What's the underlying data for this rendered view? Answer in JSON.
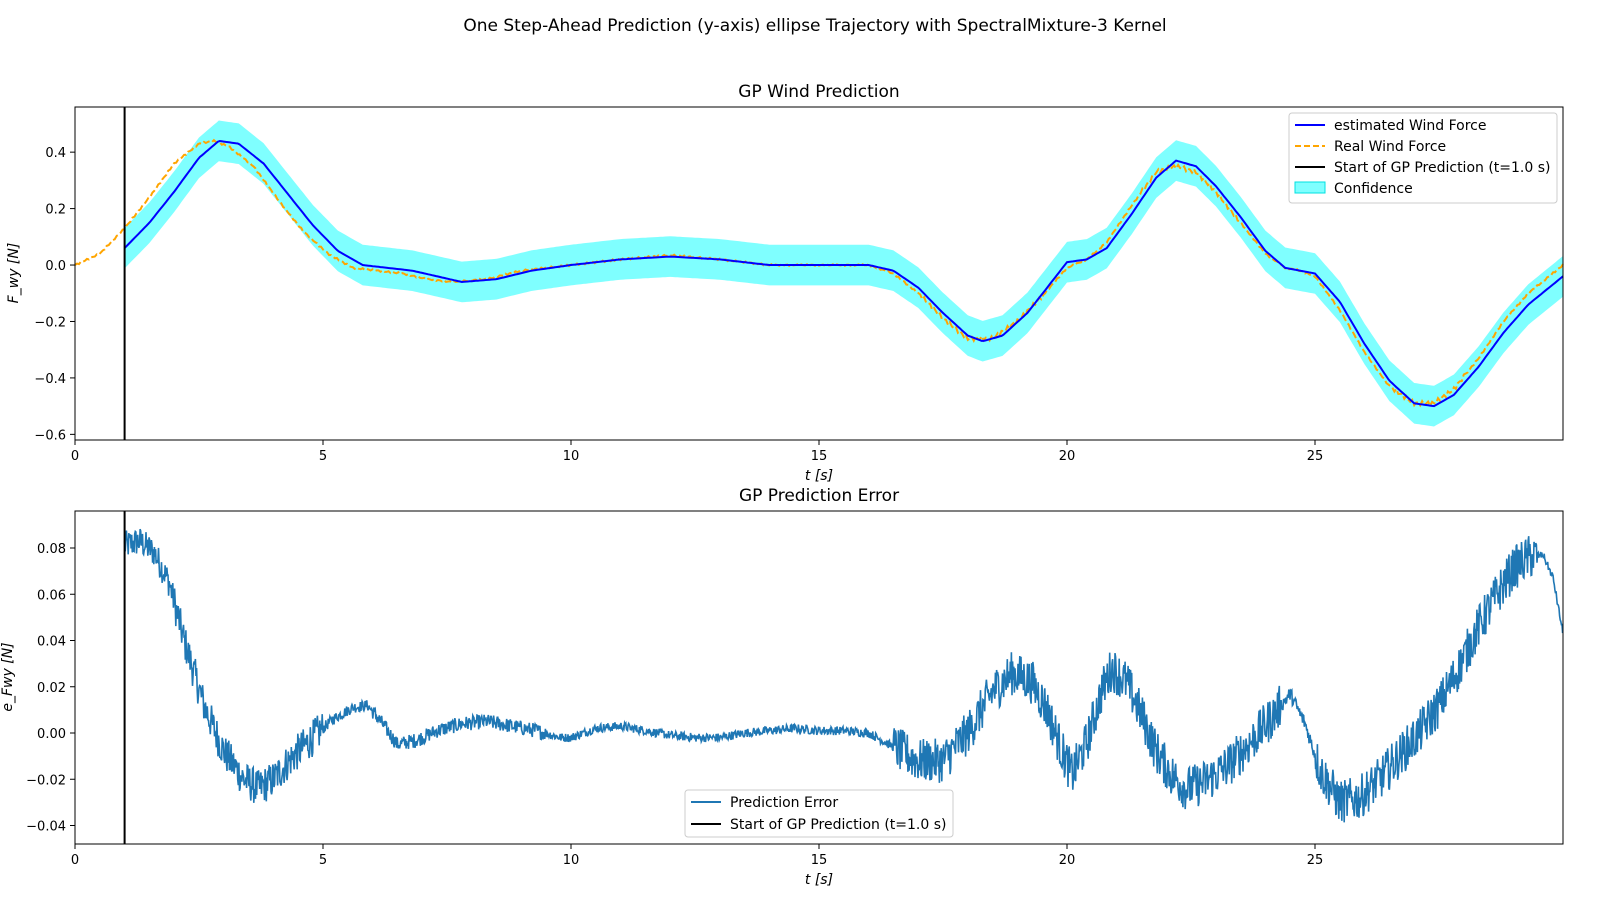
{
  "figure": {
    "suptitle": "One Step-Ahead Prediction (y-axis) ellipse Trajectory with SpectralMixture-3 Kernel"
  },
  "chart_data": [
    {
      "type": "line",
      "title": "GP Wind Prediction",
      "xlabel": "t [s]",
      "ylabel": "F_wy [N]",
      "xlim": [
        0,
        30
      ],
      "ylim": [
        -0.62,
        0.56
      ],
      "xticks": [
        0,
        5,
        10,
        15,
        20,
        25
      ],
      "yticks": [
        -0.6,
        -0.4,
        -0.2,
        0.0,
        0.2,
        0.4
      ],
      "ytick_labels": [
        "−0.6",
        "−0.4",
        "−0.2",
        "0.0",
        "0.2",
        "0.4"
      ],
      "legend_position": "top-right",
      "colors": {
        "estimate": "#0000ff",
        "real": "#ffa500",
        "start": "#000000",
        "confidence": "#00ffff"
      },
      "legend": [
        "estimated Wind Force",
        "Real Wind Force",
        "Start of GP Prediction (t=1.0 s)",
        "Confidence"
      ],
      "start_line_x": 1.0,
      "confidence_halfwidth": 0.072,
      "series": [
        {
          "name": "estimated Wind Force",
          "x": [
            1.0,
            1.5,
            2.0,
            2.5,
            2.9,
            3.3,
            3.8,
            4.3,
            4.8,
            5.3,
            5.8,
            6.3,
            6.8,
            7.3,
            7.8,
            8.5,
            9.2,
            10.0,
            11.0,
            12.0,
            13.0,
            14.0,
            15.0,
            16.0,
            16.5,
            17.0,
            17.5,
            18.0,
            18.3,
            18.7,
            19.2,
            19.6,
            20.0,
            20.4,
            20.8,
            21.3,
            21.8,
            22.2,
            22.6,
            23.0,
            23.5,
            24.0,
            24.4,
            24.7,
            25.0,
            25.5,
            26.0,
            26.5,
            27.0,
            27.4,
            27.8,
            28.3,
            28.8,
            29.3,
            30.0
          ],
          "y": [
            0.06,
            0.15,
            0.26,
            0.38,
            0.44,
            0.43,
            0.36,
            0.25,
            0.14,
            0.05,
            0.0,
            -0.01,
            -0.02,
            -0.04,
            -0.06,
            -0.05,
            -0.02,
            0.0,
            0.02,
            0.03,
            0.02,
            0.0,
            0.0,
            0.0,
            -0.02,
            -0.08,
            -0.17,
            -0.25,
            -0.27,
            -0.25,
            -0.17,
            -0.08,
            0.01,
            0.02,
            0.06,
            0.18,
            0.31,
            0.37,
            0.35,
            0.28,
            0.17,
            0.05,
            -0.01,
            -0.02,
            -0.03,
            -0.13,
            -0.28,
            -0.41,
            -0.49,
            -0.5,
            -0.46,
            -0.36,
            -0.24,
            -0.14,
            -0.04
          ]
        },
        {
          "name": "Real Wind Force",
          "x": [
            0.0,
            0.5,
            1.0,
            1.5,
            2.0,
            2.5,
            2.8,
            3.1,
            3.6,
            4.1,
            4.6,
            5.1,
            5.6,
            6.1,
            6.6,
            7.1,
            7.6,
            8.3,
            9.0,
            10.0,
            11.0,
            12.0,
            13.0,
            14.0,
            15.0,
            16.0,
            16.5,
            17.0,
            17.5,
            18.0,
            18.5,
            19.0,
            19.5,
            20.0,
            20.4,
            20.8,
            21.3,
            21.8,
            22.2,
            22.6,
            23.0,
            23.5,
            24.0,
            24.4,
            24.7,
            25.0,
            25.5,
            26.0,
            26.5,
            27.0,
            27.4,
            27.8,
            28.3,
            28.8,
            29.3,
            30.0
          ],
          "y": [
            0.0,
            0.04,
            0.13,
            0.24,
            0.36,
            0.43,
            0.44,
            0.42,
            0.35,
            0.23,
            0.12,
            0.04,
            -0.01,
            -0.02,
            -0.03,
            -0.05,
            -0.06,
            -0.05,
            -0.02,
            0.0,
            0.02,
            0.035,
            0.02,
            0.0,
            0.0,
            0.0,
            -0.03,
            -0.1,
            -0.19,
            -0.26,
            -0.26,
            -0.2,
            -0.11,
            -0.01,
            0.02,
            0.08,
            0.21,
            0.33,
            0.35,
            0.33,
            0.26,
            0.15,
            0.04,
            -0.01,
            -0.02,
            -0.04,
            -0.16,
            -0.31,
            -0.43,
            -0.49,
            -0.49,
            -0.44,
            -0.33,
            -0.2,
            -0.1,
            0.0
          ]
        }
      ]
    },
    {
      "type": "line",
      "title": "GP Prediction Error",
      "xlabel": "t [s]",
      "ylabel": "e_Fwy [N]",
      "xlim": [
        0,
        30
      ],
      "ylim": [
        -0.048,
        0.096
      ],
      "xticks": [
        0,
        5,
        10,
        15,
        20,
        25
      ],
      "yticks": [
        -0.04,
        -0.02,
        0.0,
        0.02,
        0.04,
        0.06,
        0.08
      ],
      "ytick_labels": [
        "−0.04",
        "−0.02",
        "0.00",
        "0.02",
        "0.04",
        "0.06",
        "0.08"
      ],
      "legend_position": "lower-center",
      "colors": {
        "error": "#1f77b4",
        "start": "#000000"
      },
      "legend": [
        "Prediction Error",
        "Start of GP Prediction (t=1.0 s)"
      ],
      "start_line_x": 1.0,
      "series": [
        {
          "name": "Prediction Error",
          "x": [
            1.0,
            1.3,
            1.6,
            1.9,
            2.2,
            2.6,
            3.0,
            3.4,
            3.7,
            4.0,
            4.4,
            4.8,
            5.2,
            5.6,
            5.9,
            6.2,
            6.5,
            6.9,
            7.3,
            7.8,
            8.3,
            8.8,
            9.3,
            9.8,
            10.0,
            10.5,
            11.0,
            11.5,
            12.0,
            12.5,
            13.0,
            13.5,
            14.0,
            14.5,
            15.0,
            15.5,
            16.0,
            16.5,
            17.0,
            17.5,
            18.0,
            18.5,
            18.9,
            19.3,
            19.6,
            19.9,
            20.1,
            20.4,
            20.7,
            20.9,
            21.2,
            21.5,
            21.8,
            22.1,
            22.4,
            22.7,
            23.0,
            23.3,
            23.7,
            24.1,
            24.5,
            24.8,
            25.1,
            25.5,
            25.9,
            26.3,
            26.7,
            27.1,
            27.5,
            27.9,
            28.3,
            28.7,
            29.0,
            29.3,
            29.6,
            29.8,
            30.0
          ],
          "y": [
            0.081,
            0.083,
            0.078,
            0.065,
            0.04,
            0.012,
            -0.008,
            -0.02,
            -0.024,
            -0.02,
            -0.01,
            -0.002,
            0.006,
            0.011,
            0.012,
            0.004,
            -0.005,
            -0.003,
            0.001,
            0.004,
            0.005,
            0.003,
            0.001,
            -0.002,
            -0.002,
            0.002,
            0.003,
            0.001,
            -0.001,
            -0.002,
            -0.002,
            0.0,
            0.001,
            0.002,
            0.001,
            0.001,
            0.0,
            -0.006,
            -0.012,
            -0.012,
            0.0,
            0.018,
            0.026,
            0.022,
            0.01,
            -0.008,
            -0.018,
            -0.004,
            0.018,
            0.028,
            0.022,
            0.008,
            -0.008,
            -0.018,
            -0.024,
            -0.022,
            -0.018,
            -0.013,
            -0.004,
            0.006,
            0.017,
            0.004,
            -0.016,
            -0.03,
            -0.028,
            -0.02,
            -0.01,
            0.0,
            0.012,
            0.028,
            0.046,
            0.061,
            0.071,
            0.076,
            0.077,
            0.067,
            0.043
          ]
        }
      ]
    }
  ]
}
